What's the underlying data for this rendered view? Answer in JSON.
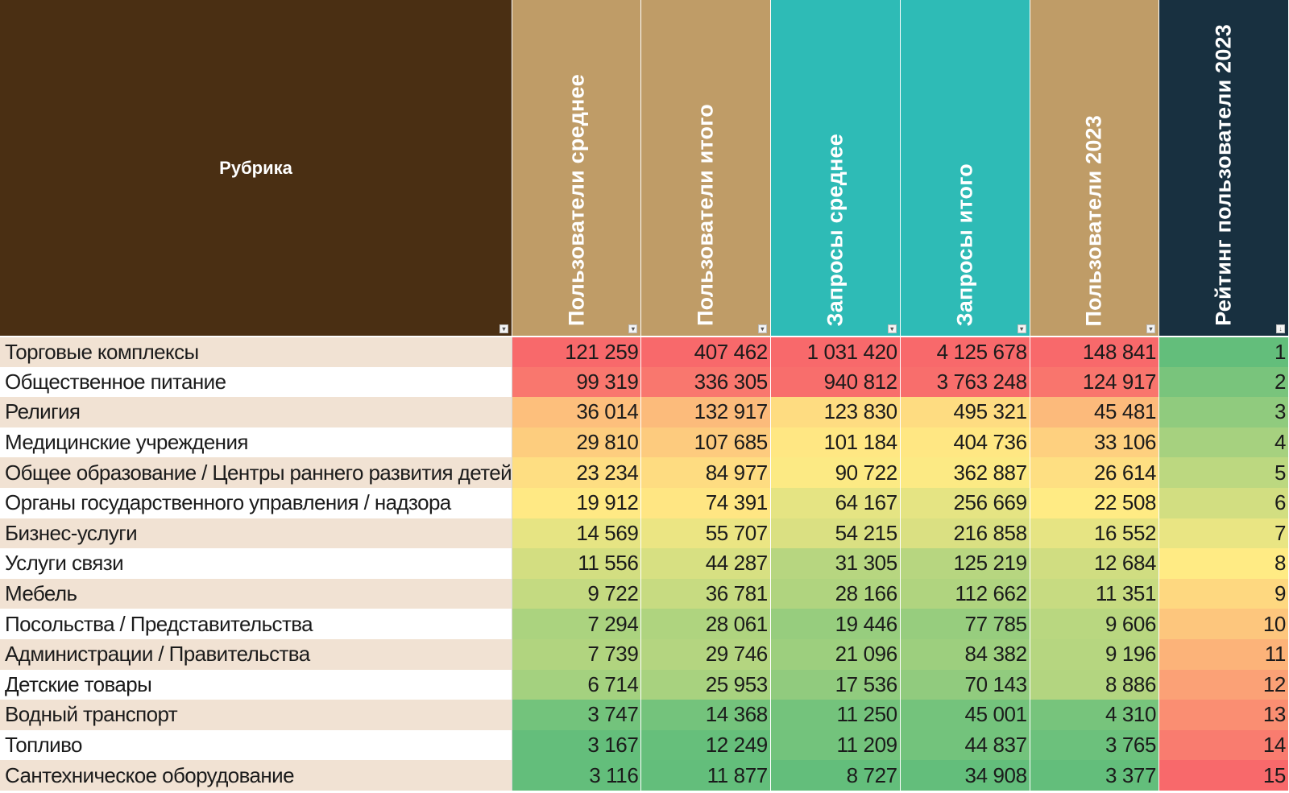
{
  "colors": {
    "header_rubric": "#4a2f13",
    "header_users": "#bf9c67",
    "header_requests": "#2ebbb6",
    "header_rating": "#183040"
  },
  "headers": {
    "rubric": "Рубрика",
    "users_avg": "Пользователи среднее",
    "users_total": "Пользователи итого",
    "requests_avg": "Запросы среднее",
    "requests_total": "Запросы итого",
    "users_2023": "Пользователи 2023",
    "rating_2023": "Рейтинг пользователи 2023"
  },
  "rows": [
    {
      "rubric": "Торговые комплексы",
      "users_avg": "121 259",
      "users_total": "407 462",
      "requests_avg": "1 031 420",
      "requests_total": "4 125 678",
      "users_2023": "148 841",
      "rating": "1"
    },
    {
      "rubric": "Общественное питание",
      "users_avg": "99 319",
      "users_total": "336 305",
      "requests_avg": "940 812",
      "requests_total": "3 763 248",
      "users_2023": "124 917",
      "rating": "2"
    },
    {
      "rubric": "Религия",
      "users_avg": "36 014",
      "users_total": "132 917",
      "requests_avg": "123 830",
      "requests_total": "495 321",
      "users_2023": "45 481",
      "rating": "3"
    },
    {
      "rubric": "Медицинские учреждения",
      "users_avg": "29 810",
      "users_total": "107 685",
      "requests_avg": "101 184",
      "requests_total": "404 736",
      "users_2023": "33 106",
      "rating": "4"
    },
    {
      "rubric": "Общее образование / Центры раннего развития детей",
      "users_avg": "23 234",
      "users_total": "84 977",
      "requests_avg": "90 722",
      "requests_total": "362 887",
      "users_2023": "26 614",
      "rating": "5"
    },
    {
      "rubric": "Органы государственного управления / надзора",
      "users_avg": "19 912",
      "users_total": "74 391",
      "requests_avg": "64 167",
      "requests_total": "256 669",
      "users_2023": "22 508",
      "rating": "6"
    },
    {
      "rubric": "Бизнес-услуги",
      "users_avg": "14 569",
      "users_total": "55 707",
      "requests_avg": "54 215",
      "requests_total": "216 858",
      "users_2023": "16 552",
      "rating": "7"
    },
    {
      "rubric": "Услуги связи",
      "users_avg": "11 556",
      "users_total": "44 287",
      "requests_avg": "31 305",
      "requests_total": "125 219",
      "users_2023": "12 684",
      "rating": "8"
    },
    {
      "rubric": "Мебель",
      "users_avg": "9 722",
      "users_total": "36 781",
      "requests_avg": "28 166",
      "requests_total": "112 662",
      "users_2023": "11 351",
      "rating": "9"
    },
    {
      "rubric": "Посольства / Представительства",
      "users_avg": "7 294",
      "users_total": "28 061",
      "requests_avg": "19 446",
      "requests_total": "77 785",
      "users_2023": "9 606",
      "rating": "10"
    },
    {
      "rubric": "Администрации / Правительства",
      "users_avg": "7 739",
      "users_total": "29 746",
      "requests_avg": "21 096",
      "requests_total": "84 382",
      "users_2023": "9 196",
      "rating": "11"
    },
    {
      "rubric": "Детские товары",
      "users_avg": "6 714",
      "users_total": "25 953",
      "requests_avg": "17 536",
      "requests_total": "70 143",
      "users_2023": "8 886",
      "rating": "12"
    },
    {
      "rubric": "Водный транспорт",
      "users_avg": "3 747",
      "users_total": "14 368",
      "requests_avg": "11 250",
      "requests_total": "45 001",
      "users_2023": "4 310",
      "rating": "13"
    },
    {
      "rubric": "Топливо",
      "users_avg": "3 167",
      "users_total": "12 249",
      "requests_avg": "11 209",
      "requests_total": "44 837",
      "users_2023": "3 765",
      "rating": "14"
    },
    {
      "rubric": "Сантехническое оборудование",
      "users_avg": "3 116",
      "users_total": "11 877",
      "requests_avg": "8 727",
      "requests_total": "34 908",
      "users_2023": "3 377",
      "rating": "15"
    }
  ]
}
